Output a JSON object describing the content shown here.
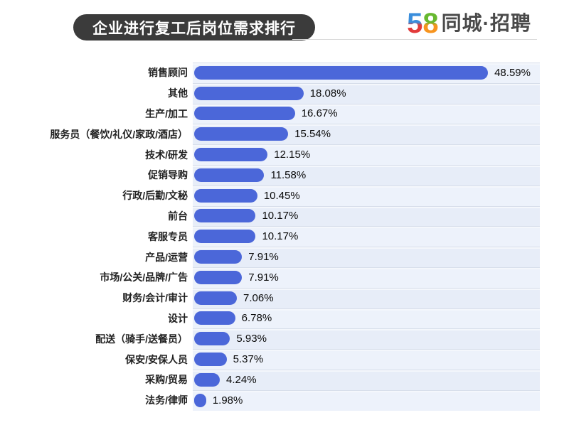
{
  "header": {
    "title": "企业进行复工后岗位需求排行",
    "logo": {
      "digit_5": "5",
      "digit_8": "8",
      "brand_text": "同城·招聘"
    }
  },
  "colors": {
    "bar": "#4b67d9",
    "pill_bg": "#3b3b3b",
    "pill_text": "#ffffff",
    "stripe_light": "#edf2fb",
    "stripe_dark": "#e7edf8",
    "logo_five_top": "#3a8edc",
    "logo_five_bottom": "#e23a3a",
    "logo_eight_top": "#67b82f",
    "logo_eight_bottom": "#f7941e",
    "logo_brand_text": "#4a4a4a",
    "header_rule": "#d9d9d9"
  },
  "chart_data": {
    "type": "bar",
    "orientation": "horizontal",
    "title": "企业进行复工后岗位需求排行",
    "xlabel": "",
    "ylabel": "",
    "unit": "%",
    "xlim": [
      0,
      57.4
    ],
    "grid": false,
    "legend": false,
    "value_labels_shown": true,
    "categories": [
      "销售顾问",
      "其他",
      "生产/加工",
      "服务员（餐饮/礼仪/家政/酒店）",
      "技术/研发",
      "促销导购",
      "行政/后勤/文秘",
      "前台",
      "客服专员",
      "产品/运营",
      "市场/公关/品牌/广告",
      "财务/会计/审计",
      "设计",
      "配送（骑手/送餐员）",
      "保安/安保人员",
      "采购/贸易",
      "法务/律师"
    ],
    "values": [
      48.59,
      18.08,
      16.67,
      15.54,
      12.15,
      11.58,
      10.45,
      10.17,
      10.17,
      7.91,
      7.91,
      7.06,
      6.78,
      5.93,
      5.37,
      4.24,
      1.98
    ],
    "value_labels": [
      "48.59%",
      "18.08%",
      "16.67%",
      "15.54%",
      "12.15%",
      "11.58%",
      "10.45%",
      "10.17%",
      "10.17%",
      "7.91%",
      "7.91%",
      "7.06%",
      "6.78%",
      "5.93%",
      "5.37%",
      "4.24%",
      "1.98%"
    ]
  }
}
